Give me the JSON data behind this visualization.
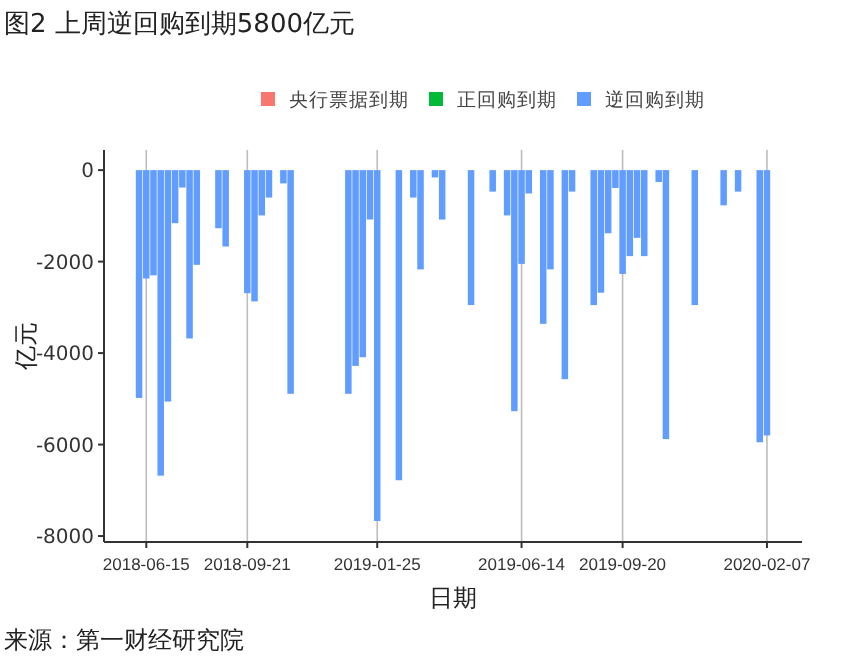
{
  "chart_data": {
    "type": "bar",
    "title": "图2 上周逆回购到期5800亿元",
    "xlabel": "日期",
    "ylabel": "亿元",
    "annotations": [
      "来源：第一财经研究院"
    ],
    "x": [
      "2018-06-08",
      "2018-06-15",
      "2018-06-22",
      "2018-06-29",
      "2018-07-06",
      "2018-07-13",
      "2018-07-20",
      "2018-07-27",
      "2018-08-03",
      "2018-08-24",
      "2018-08-31",
      "2018-09-21",
      "2018-09-28",
      "2018-10-05",
      "2018-10-12",
      "2018-10-26",
      "2018-11-02",
      "2018-12-28",
      "2019-01-04",
      "2019-01-11",
      "2019-01-18",
      "2019-01-25",
      "2019-02-15",
      "2019-03-01",
      "2019-03-08",
      "2019-03-22",
      "2019-03-29",
      "2019-04-26",
      "2019-05-17",
      "2019-05-31",
      "2019-06-07",
      "2019-06-14",
      "2019-06-21",
      "2019-07-05",
      "2019-07-12",
      "2019-07-26",
      "2019-08-02",
      "2019-08-23",
      "2019-08-30",
      "2019-09-06",
      "2019-09-13",
      "2019-09-20",
      "2019-09-27",
      "2019-10-04",
      "2019-10-11",
      "2019-10-25",
      "2019-11-01",
      "2019-11-29",
      "2019-12-27",
      "2020-01-10",
      "2020-01-31",
      "2020-02-07"
    ],
    "series": [
      {
        "name": "央行票据到期",
        "color": "#f8766d",
        "values": [
          null,
          null,
          null,
          null,
          null,
          null,
          null,
          null,
          null,
          null,
          null,
          null,
          null,
          null,
          null,
          null,
          null,
          null,
          null,
          null,
          null,
          null,
          null,
          null,
          null,
          null,
          null,
          null,
          null,
          null,
          null,
          null,
          null,
          null,
          null,
          null,
          null,
          null,
          null,
          null,
          null,
          null,
          null,
          null,
          null,
          null,
          null,
          null,
          null,
          null,
          null,
          null
        ]
      },
      {
        "name": "正回购到期",
        "color": "#00ba38",
        "values": [
          null,
          null,
          null,
          null,
          null,
          null,
          null,
          null,
          null,
          null,
          null,
          null,
          null,
          null,
          null,
          null,
          null,
          null,
          null,
          null,
          null,
          null,
          null,
          null,
          null,
          null,
          null,
          null,
          null,
          null,
          null,
          null,
          null,
          null,
          null,
          null,
          null,
          null,
          null,
          null,
          null,
          null,
          null,
          null,
          null,
          null,
          null,
          null,
          null,
          null,
          null,
          null
        ]
      },
      {
        "name": "逆回购到期",
        "color": "#619cff",
        "values": [
          -4980,
          -2370,
          -2300,
          -6680,
          -5060,
          -1160,
          -380,
          -3680,
          -2070,
          -1270,
          -1670,
          -2690,
          -2870,
          -990,
          -600,
          -290,
          -4890,
          -4890,
          -4280,
          -4090,
          -1080,
          -7670,
          -6780,
          -600,
          -2170,
          -160,
          -1080,
          -2950,
          -470,
          -990,
          -5270,
          -2050,
          -510,
          -3360,
          -2170,
          -4570,
          -470,
          -2950,
          -2680,
          -1380,
          -390,
          -2270,
          -1880,
          -1480,
          -1880,
          -260,
          -5880,
          -2950,
          -770,
          -470,
          -5950,
          -5800
        ]
      }
    ],
    "xlim": [
      "2018-05-05",
      "2020-03-12"
    ],
    "xticks": [
      "2018-06-15",
      "2018-09-21",
      "2019-01-25",
      "2019-06-14",
      "2019-09-20",
      "2020-02-07"
    ],
    "ylim": [
      -8130,
      440
    ],
    "yticks": [
      0,
      -2000,
      -4000,
      -6000,
      -8000
    ],
    "grid": "x",
    "legend": "top"
  }
}
